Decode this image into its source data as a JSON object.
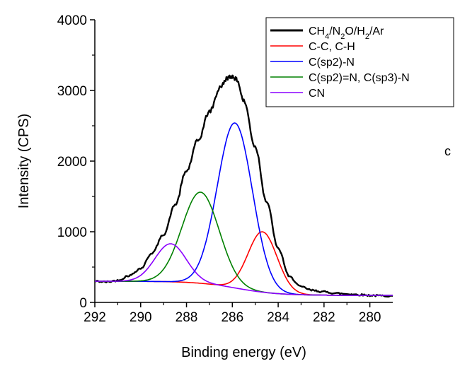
{
  "chart_data": {
    "type": "line",
    "xlabel": "Binding energy (eV)",
    "ylabel": "Intensity (CPS)",
    "xlim": [
      292,
      279
    ],
    "ylim": [
      0,
      4000
    ],
    "x_reversed": true,
    "xticks": [
      "292",
      "290",
      "288",
      "286",
      "284",
      "282",
      "280"
    ],
    "yticks": [
      "0",
      "1000",
      "2000",
      "3000",
      "4000"
    ],
    "grid": false,
    "legend_position": "top-right",
    "panel_label": "c",
    "background": 300,
    "series": [
      {
        "name": "CH4/N2O/H2/Ar",
        "name_parts": [
          {
            "text": "CH",
            "sub": false
          },
          {
            "text": "4",
            "sub": true
          },
          {
            "text": "/N",
            "sub": false
          },
          {
            "text": "2",
            "sub": true
          },
          {
            "text": "O/H",
            "sub": false
          },
          {
            "text": "2",
            "sub": true
          },
          {
            "text": "/Ar",
            "sub": false
          }
        ],
        "color": "#000000",
        "kind": "measured",
        "x": [
          292.0,
          291.5,
          291.0,
          290.5,
          290.0,
          289.5,
          289.0,
          288.5,
          288.0,
          287.5,
          287.0,
          286.5,
          286.2,
          286.0,
          285.8,
          285.5,
          285.0,
          284.5,
          284.0,
          283.5,
          283.0,
          282.5,
          282.0,
          281.5,
          281.0,
          280.5,
          280.0,
          279.5,
          279.0
        ],
        "y": [
          300,
          290,
          310,
          380,
          480,
          700,
          960,
          1380,
          1860,
          2290,
          2700,
          3060,
          3180,
          3200,
          3150,
          2850,
          2200,
          1420,
          760,
          360,
          220,
          170,
          150,
          130,
          120,
          110,
          100,
          95,
          90
        ]
      },
      {
        "name": "C-C, C-H",
        "color": "#ff0000",
        "kind": "component",
        "center": 284.7,
        "peak": 1000,
        "fwhm": 1.5,
        "base_high": 300,
        "base_low": 100
      },
      {
        "name": "C(sp2)-N",
        "color": "#0000ff",
        "kind": "component",
        "center": 285.9,
        "peak": 2540,
        "fwhm": 1.8,
        "base_high": 300,
        "base_low": 100
      },
      {
        "name": "C(sp2)=N, C(sp3)-N",
        "color": "#008000",
        "kind": "component",
        "center": 287.4,
        "peak": 1560,
        "fwhm": 1.9,
        "base_high": 300,
        "base_low": 100
      },
      {
        "name": "CN",
        "color": "#8b00ff",
        "kind": "component",
        "center": 288.7,
        "peak": 830,
        "fwhm": 1.6,
        "base_high": 300,
        "base_low": 100
      }
    ]
  }
}
